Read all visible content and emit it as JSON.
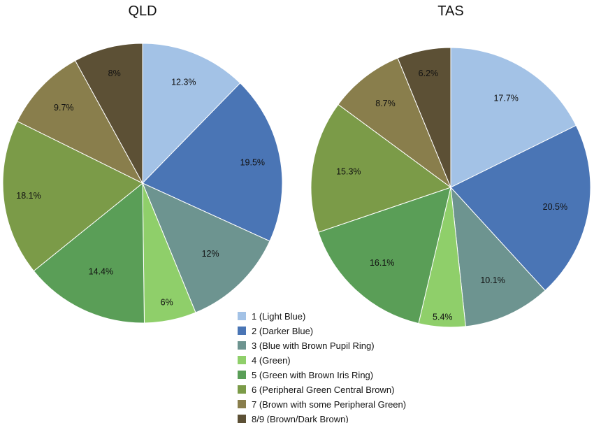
{
  "categories": [
    {
      "label": "1 (Light Blue)",
      "color": "#a3c2e6"
    },
    {
      "label": "2 (Darker Blue)",
      "color": "#4a75b5"
    },
    {
      "label": "3 (Blue with Brown Pupil Ring)",
      "color": "#6d9490"
    },
    {
      "label": "4 (Green)",
      "color": "#8fcf6a"
    },
    {
      "label": "5 (Green with Brown Iris Ring)",
      "color": "#5a9e57"
    },
    {
      "label": "6 (Peripheral Green Central Brown)",
      "color": "#7b9b48"
    },
    {
      "label": "7 (Brown with some Peripheral Green)",
      "color": "#897e4c"
    },
    {
      "label": "8/9 (Brown/Dark Brown)",
      "color": "#5c5035"
    }
  ],
  "chart_data": [
    {
      "type": "pie",
      "title": "QLD",
      "start": "12 o'clock, clockwise",
      "values": [
        12.3,
        19.5,
        12,
        6,
        14.4,
        18.1,
        9.7,
        8
      ],
      "labels": [
        "12.3%",
        "19.5%",
        "12%",
        "6%",
        "14.4%",
        "18.1%",
        "9.7%",
        "8%"
      ]
    },
    {
      "type": "pie",
      "title": "TAS",
      "start": "12 o'clock, clockwise",
      "values": [
        17.7,
        20.5,
        10.1,
        5.4,
        16.1,
        15.3,
        8.7,
        6.2
      ],
      "labels": [
        "17.7%",
        "20.5%",
        "10.1%",
        "5.4%",
        "16.1%",
        "15.3%",
        "8.7%",
        "6.2%"
      ]
    }
  ]
}
